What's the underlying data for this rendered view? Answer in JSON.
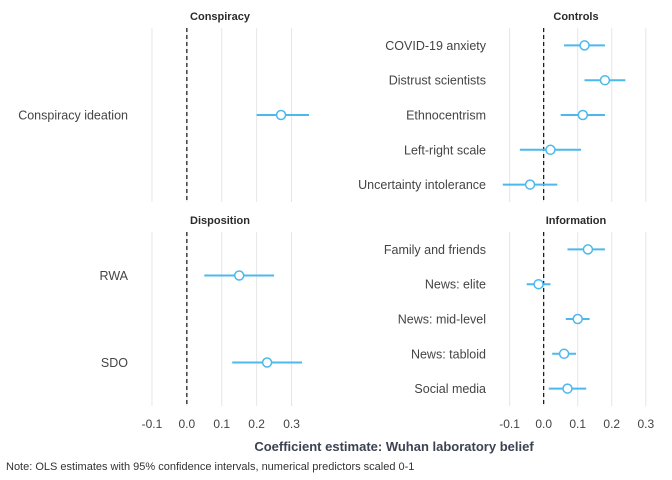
{
  "chart_data": {
    "type": "coefficient-plot",
    "x_axis_title": "Coefficient estimate: Wuhan laboratory belief",
    "note": "Note: OLS estimates with 95% confidence intervals, numerical predictors scaled 0-1",
    "x_ticks": [
      -0.1,
      0.0,
      0.1,
      0.2,
      0.3
    ],
    "x_tick_labels": [
      "-0.1",
      "0.0",
      "0.1",
      "0.2",
      "0.3"
    ],
    "xlim": [
      -0.14,
      0.33
    ],
    "reference_line": 0,
    "grid": true,
    "colors": {
      "estimate": "#4db8ec",
      "zero_line": "#111111",
      "grid": "#e6e6e6"
    },
    "panels": [
      {
        "title": "Conspiracy",
        "rows": [
          {
            "label": "Conspiracy ideation",
            "estimate": 0.27,
            "ci": [
              0.2,
              0.35
            ]
          }
        ]
      },
      {
        "title": "Controls",
        "rows": [
          {
            "label": "COVID-19 anxiety",
            "estimate": 0.12,
            "ci": [
              0.06,
              0.18
            ]
          },
          {
            "label": "Distrust scientists",
            "estimate": 0.18,
            "ci": [
              0.12,
              0.24
            ]
          },
          {
            "label": "Ethnocentrism",
            "estimate": 0.115,
            "ci": [
              0.05,
              0.18
            ]
          },
          {
            "label": "Left-right scale",
            "estimate": 0.02,
            "ci": [
              -0.07,
              0.11
            ]
          },
          {
            "label": "Uncertainty intolerance",
            "estimate": -0.04,
            "ci": [
              -0.12,
              0.04
            ]
          }
        ]
      },
      {
        "title": "Disposition",
        "rows": [
          {
            "label": "RWA",
            "estimate": 0.15,
            "ci": [
              0.05,
              0.25
            ]
          },
          {
            "label": "SDO",
            "estimate": 0.23,
            "ci": [
              0.13,
              0.33
            ]
          }
        ]
      },
      {
        "title": "Information",
        "rows": [
          {
            "label": "Family and friends",
            "estimate": 0.13,
            "ci": [
              0.07,
              0.18
            ]
          },
          {
            "label": "News: elite",
            "estimate": -0.015,
            "ci": [
              -0.05,
              0.02
            ]
          },
          {
            "label": "News: mid-level",
            "estimate": 0.1,
            "ci": [
              0.065,
              0.135
            ]
          },
          {
            "label": "News: tabloid",
            "estimate": 0.06,
            "ci": [
              0.025,
              0.095
            ]
          },
          {
            "label": "Social media",
            "estimate": 0.07,
            "ci": [
              0.015,
              0.125
            ]
          }
        ]
      }
    ]
  }
}
